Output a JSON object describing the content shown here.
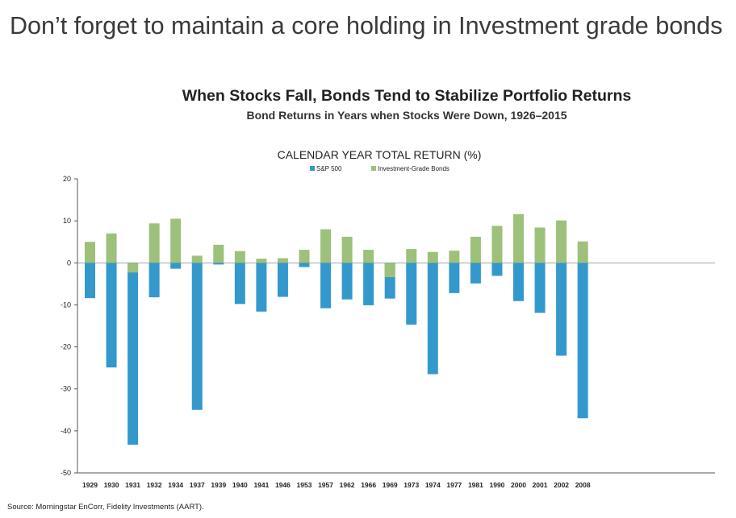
{
  "slide_title": "Don’t forget to maintain a core holding in Investment grade bonds",
  "chart_title": "When Stocks Fall, Bonds Tend to Stabilize Portfolio Returns",
  "chart_subtitle": "Bond Returns in Years when Stocks Were Down, 1926–2015",
  "source": "Source: Morningstar EnCorr, Fidelity Investments (AART).",
  "chart_data": {
    "type": "bar",
    "title": "CALENDAR YEAR TOTAL RETURN (%)",
    "legend_position": "top-center",
    "grid": false,
    "ylim": [
      -50,
      20
    ],
    "yticks": [
      20,
      10,
      0,
      -10,
      -20,
      -30,
      -40,
      -50
    ],
    "categories": [
      "1929",
      "1930",
      "1931",
      "1932",
      "1934",
      "1937",
      "1939",
      "1940",
      "1941",
      "1946",
      "1953",
      "1957",
      "1962",
      "1966",
      "1969",
      "1973",
      "1974",
      "1977",
      "1981",
      "1990",
      "2000",
      "2001",
      "2002",
      "2008"
    ],
    "series": [
      {
        "name": "S&P 500",
        "color": "#3399cc",
        "values": [
          -8.4,
          -24.9,
          -43.3,
          -8.2,
          -1.4,
          -35.0,
          -0.4,
          -9.8,
          -11.6,
          -8.1,
          -1.0,
          -10.8,
          -8.7,
          -10.1,
          -8.5,
          -14.7,
          -26.5,
          -7.2,
          -4.9,
          -3.1,
          -9.1,
          -11.9,
          -22.1,
          -37.0
        ]
      },
      {
        "name": "Investment-Grade Bonds",
        "color": "#9dc07a",
        "values": [
          5.0,
          7.0,
          -2.3,
          9.4,
          10.5,
          1.7,
          4.3,
          2.8,
          1.0,
          1.1,
          3.1,
          8.0,
          6.2,
          3.1,
          -3.4,
          3.3,
          2.6,
          2.9,
          6.2,
          8.8,
          11.6,
          8.4,
          10.1,
          5.1
        ]
      }
    ]
  }
}
